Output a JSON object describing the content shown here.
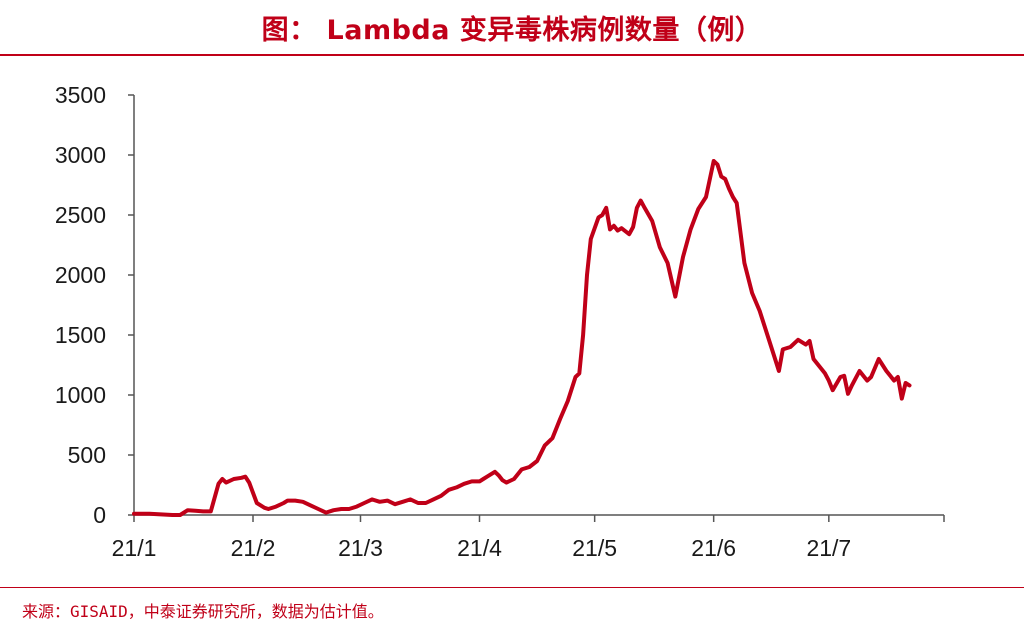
{
  "title": "图： Lambda 变异毒株病例数量（例）",
  "source": "来源：GISAID，中泰证券研究所，数据为估计值。",
  "colors": {
    "accent": "#c00018",
    "line": "#c00018",
    "axis": "#555555"
  },
  "chart_data": {
    "type": "line",
    "title": "图： Lambda 变异毒株病例数量（例）",
    "xlabel": "",
    "ylabel": "",
    "x_tick_labels": [
      "21/1",
      "21/2",
      "21/3",
      "21/4",
      "21/5",
      "21/6",
      "21/7"
    ],
    "y_tick_labels": [
      "0",
      "500",
      "1000",
      "1500",
      "2000",
      "2500",
      "3000",
      "3500"
    ],
    "ylim": [
      0,
      3500
    ],
    "xlim": [
      "2021-01-01",
      "2021-07-31"
    ],
    "grid": false,
    "series": [
      {
        "values": [
          [
            "2021-01-01",
            10
          ],
          [
            "2021-01-05",
            10
          ],
          [
            "2021-01-08",
            5
          ],
          [
            "2021-01-11",
            0
          ],
          [
            "2021-01-13",
            0
          ],
          [
            "2021-01-15",
            40
          ],
          [
            "2021-01-17",
            35
          ],
          [
            "2021-01-19",
            30
          ],
          [
            "2021-01-21",
            30
          ],
          [
            "2021-01-23",
            260
          ],
          [
            "2021-01-24",
            300
          ],
          [
            "2021-01-25",
            270
          ],
          [
            "2021-01-27",
            300
          ],
          [
            "2021-01-29",
            310
          ],
          [
            "2021-01-30",
            320
          ],
          [
            "2021-01-31",
            270
          ],
          [
            "2021-02-02",
            100
          ],
          [
            "2021-02-04",
            60
          ],
          [
            "2021-02-05",
            50
          ],
          [
            "2021-02-07",
            70
          ],
          [
            "2021-02-09",
            100
          ],
          [
            "2021-02-10",
            120
          ],
          [
            "2021-02-12",
            120
          ],
          [
            "2021-02-14",
            110
          ],
          [
            "2021-02-16",
            80
          ],
          [
            "2021-02-18",
            50
          ],
          [
            "2021-02-20",
            20
          ],
          [
            "2021-02-22",
            40
          ],
          [
            "2021-02-24",
            50
          ],
          [
            "2021-02-26",
            50
          ],
          [
            "2021-02-28",
            70
          ],
          [
            "2021-03-02",
            100
          ],
          [
            "2021-03-04",
            130
          ],
          [
            "2021-03-06",
            110
          ],
          [
            "2021-03-08",
            120
          ],
          [
            "2021-03-10",
            90
          ],
          [
            "2021-03-12",
            110
          ],
          [
            "2021-03-14",
            130
          ],
          [
            "2021-03-16",
            100
          ],
          [
            "2021-03-18",
            100
          ],
          [
            "2021-03-20",
            130
          ],
          [
            "2021-03-22",
            160
          ],
          [
            "2021-03-24",
            210
          ],
          [
            "2021-03-26",
            230
          ],
          [
            "2021-03-28",
            260
          ],
          [
            "2021-03-30",
            280
          ],
          [
            "2021-04-01",
            280
          ],
          [
            "2021-04-02",
            300
          ],
          [
            "2021-04-03",
            320
          ],
          [
            "2021-04-05",
            360
          ],
          [
            "2021-04-06",
            330
          ],
          [
            "2021-04-07",
            290
          ],
          [
            "2021-04-08",
            270
          ],
          [
            "2021-04-10",
            300
          ],
          [
            "2021-04-12",
            380
          ],
          [
            "2021-04-14",
            400
          ],
          [
            "2021-04-16",
            450
          ],
          [
            "2021-04-18",
            580
          ],
          [
            "2021-04-20",
            640
          ],
          [
            "2021-04-22",
            800
          ],
          [
            "2021-04-24",
            950
          ],
          [
            "2021-04-26",
            1150
          ],
          [
            "2021-04-27",
            1180
          ],
          [
            "2021-04-28",
            1500
          ],
          [
            "2021-04-29",
            2000
          ],
          [
            "2021-04-30",
            2300
          ],
          [
            "2021-05-02",
            2480
          ],
          [
            "2021-05-03",
            2500
          ],
          [
            "2021-05-04",
            2560
          ],
          [
            "2021-05-05",
            2380
          ],
          [
            "2021-05-06",
            2410
          ],
          [
            "2021-05-07",
            2370
          ],
          [
            "2021-05-08",
            2390
          ],
          [
            "2021-05-10",
            2340
          ],
          [
            "2021-05-11",
            2400
          ],
          [
            "2021-05-12",
            2560
          ],
          [
            "2021-05-13",
            2620
          ],
          [
            "2021-05-14",
            2560
          ],
          [
            "2021-05-16",
            2450
          ],
          [
            "2021-05-18",
            2230
          ],
          [
            "2021-05-20",
            2100
          ],
          [
            "2021-05-22",
            1820
          ],
          [
            "2021-05-24",
            2150
          ],
          [
            "2021-05-26",
            2380
          ],
          [
            "2021-05-28",
            2550
          ],
          [
            "2021-05-30",
            2650
          ],
          [
            "2021-06-01",
            2950
          ],
          [
            "2021-06-02",
            2920
          ],
          [
            "2021-06-03",
            2820
          ],
          [
            "2021-06-04",
            2800
          ],
          [
            "2021-06-05",
            2720
          ],
          [
            "2021-06-06",
            2650
          ],
          [
            "2021-06-07",
            2600
          ],
          [
            "2021-06-09",
            2100
          ],
          [
            "2021-06-11",
            1850
          ],
          [
            "2021-06-13",
            1700
          ],
          [
            "2021-06-15",
            1500
          ],
          [
            "2021-06-17",
            1300
          ],
          [
            "2021-06-18",
            1200
          ],
          [
            "2021-06-19",
            1380
          ],
          [
            "2021-06-21",
            1400
          ],
          [
            "2021-06-23",
            1460
          ],
          [
            "2021-06-25",
            1420
          ],
          [
            "2021-06-26",
            1450
          ],
          [
            "2021-06-27",
            1300
          ],
          [
            "2021-06-28",
            1260
          ],
          [
            "2021-06-29",
            1220
          ],
          [
            "2021-06-30",
            1180
          ],
          [
            "2021-07-01",
            1120
          ],
          [
            "2021-07-02",
            1040
          ],
          [
            "2021-07-04",
            1150
          ],
          [
            "2021-07-05",
            1160
          ],
          [
            "2021-07-06",
            1010
          ],
          [
            "2021-07-07",
            1080
          ],
          [
            "2021-07-09",
            1200
          ],
          [
            "2021-07-11",
            1120
          ],
          [
            "2021-07-12",
            1150
          ],
          [
            "2021-07-14",
            1300
          ],
          [
            "2021-07-16",
            1200
          ],
          [
            "2021-07-18",
            1120
          ],
          [
            "2021-07-19",
            1150
          ],
          [
            "2021-07-20",
            970
          ],
          [
            "2021-07-21",
            1100
          ],
          [
            "2021-07-22",
            1080
          ]
        ]
      }
    ]
  }
}
